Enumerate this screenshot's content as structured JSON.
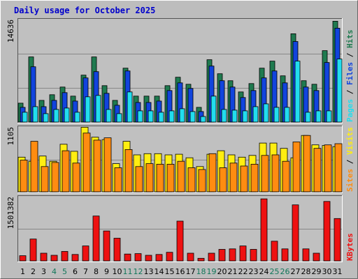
{
  "chart_data": {
    "type": "bar",
    "title": "Daily usage for October 2025",
    "x_labels": [
      "1",
      "2",
      "3",
      "4",
      "5",
      "6",
      "7",
      "8",
      "9",
      "10",
      "11",
      "12",
      "13",
      "14",
      "15",
      "16",
      "17",
      "18",
      "19",
      "20",
      "21",
      "22",
      "23",
      "24",
      "25",
      "26",
      "27",
      "28",
      "29",
      "30",
      "31"
    ],
    "weekend_days": [
      "4",
      "5",
      "11",
      "12",
      "18",
      "19",
      "25",
      "26"
    ],
    "colors": {
      "hits": "#1f7a4f",
      "files": "#1144dd",
      "pages": "#22ddee",
      "visits": "#ffee11",
      "sites": "#ff8c11",
      "kbytes": "#ee1111",
      "weekday_label": "#000000",
      "weekend_label": "#11775a",
      "title": "#0000cc",
      "panel_bg": "#c0c0c0",
      "frame_bg": "#bdbdbd"
    },
    "panels": [
      {
        "name": "hits-files-pages",
        "y_label": "14636",
        "y_max": 14636,
        "series_labels": [
          "Pages",
          "Files",
          "Hits"
        ],
        "series": [
          {
            "name": "Hits",
            "values": [
              2700,
              9300,
              3100,
              3900,
              5000,
              3700,
              6700,
              9300,
              5200,
              3100,
              7700,
              3700,
              3700,
              3700,
              5200,
              6400,
              5400,
              2100,
              8900,
              6900,
              5900,
              4300,
              5500,
              7700,
              8700,
              6600,
              12600,
              5900,
              5400,
              10200,
              14400
            ]
          },
          {
            "name": "Files",
            "values": [
              2100,
              7900,
              2200,
              3100,
              4200,
              3000,
              6300,
              7200,
              4100,
              2400,
              7300,
              2800,
              2800,
              3000,
              4500,
              5600,
              4800,
              1500,
              8000,
              5900,
              5000,
              3500,
              4500,
              6300,
              7300,
              5600,
              11500,
              5000,
              4500,
              8500,
              13400
            ]
          },
          {
            "name": "Pages",
            "values": [
              1400,
              2200,
              1200,
              1800,
              2000,
              1400,
              3600,
              3800,
              1800,
              1200,
              4300,
              1600,
              1600,
              1400,
              1600,
              1900,
              1500,
              800,
              3700,
              1800,
              1700,
              1600,
              2200,
              2600,
              2100,
              2100,
              8700,
              1400,
              1600,
              1600,
              9000
            ]
          }
        ]
      },
      {
        "name": "visits-sites",
        "y_label": "1105",
        "y_max": 1105,
        "series_labels": [
          "Sites",
          "Visits"
        ],
        "series": [
          {
            "name": "Visits",
            "values": [
              590,
              520,
              610,
              520,
              810,
              690,
              1100,
              930,
              890,
              480,
              860,
              630,
              650,
              650,
              630,
              640,
              580,
              430,
              640,
              700,
              630,
              590,
              620,
              830,
              830,
              740,
              580,
              960,
              800,
              790,
              770
            ]
          },
          {
            "name": "Sites",
            "values": [
              540,
              860,
              430,
              500,
              700,
              490,
              1000,
              880,
              920,
              410,
              720,
              430,
              480,
              470,
              470,
              520,
              410,
              380,
              650,
              410,
              490,
              440,
              470,
              620,
              630,
              520,
              850,
              960,
              740,
              800,
              820
            ]
          }
        ]
      },
      {
        "name": "kbytes",
        "y_label": "1501382",
        "y_max": 1501382,
        "series_labels": [
          "KBytes"
        ],
        "series": [
          {
            "name": "KBytes",
            "values": [
              120000,
              510000,
              180000,
              130000,
              220000,
              150000,
              350000,
              1050000,
              700000,
              530000,
              160000,
              170000,
              130000,
              150000,
              200000,
              930000,
              180000,
              60000,
              180000,
              270000,
              280000,
              350000,
              270000,
              1450000,
              460000,
              280000,
              1310000,
              280000,
              180000,
              1390000,
              990000
            ]
          }
        ]
      }
    ]
  }
}
